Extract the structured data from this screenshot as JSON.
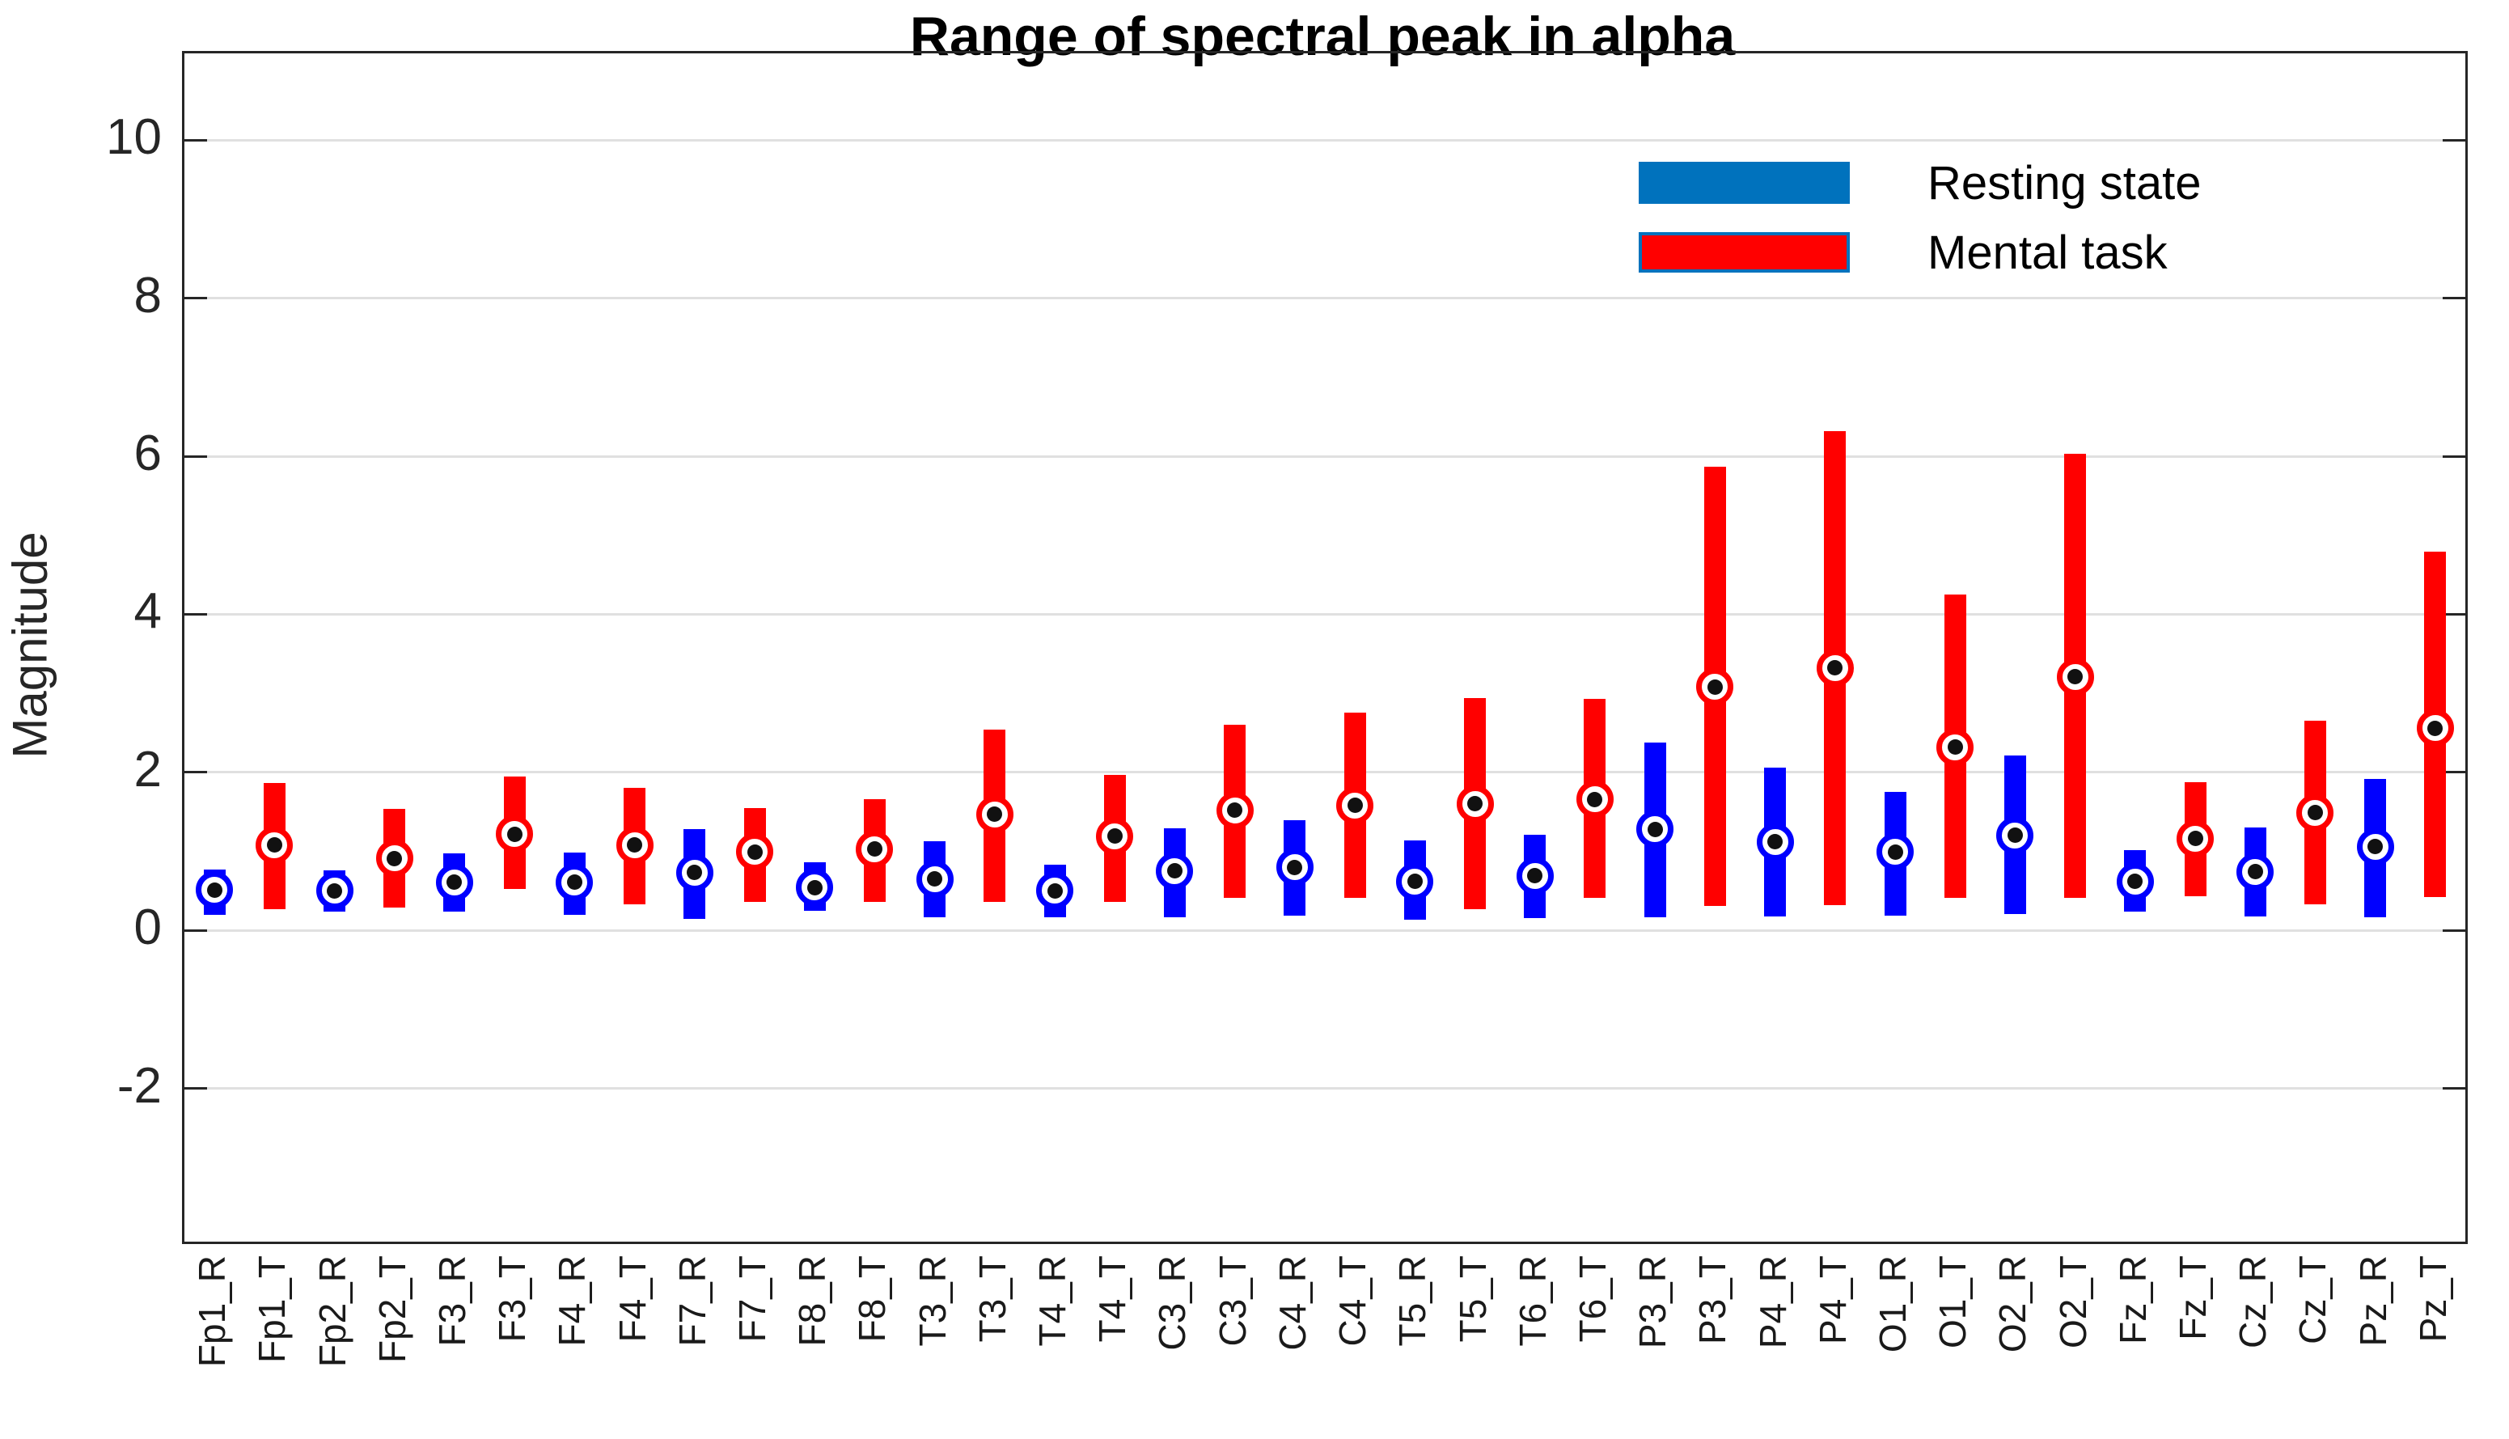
{
  "title": "Range of spectral peak in alpha",
  "ylabel": "Magnitude",
  "legend": [
    {
      "label": "Resting state",
      "color": "#0072BD"
    },
    {
      "label": "Mental task",
      "color": "#FF0000"
    }
  ],
  "colors": {
    "resting_bar": "#0000FF",
    "task_bar": "#FF0000",
    "axis": "#262626",
    "grid": "#E0E0E0",
    "legend_swatch_border": "#0072BD"
  },
  "chart_data": {
    "type": "bar",
    "subtype": "floating-range-bars-with-median-markers",
    "title": "Range of spectral peak in alpha",
    "xlabel": "",
    "ylabel": "Magnitude",
    "ylim": [
      -3.94,
      11.1
    ],
    "yticks": [
      10,
      8,
      6,
      4,
      2,
      0,
      -2
    ],
    "grid": true,
    "legend_position": "upper right inside",
    "series_legend": [
      "Resting state",
      "Mental task"
    ],
    "categories": [
      "Fp1_R",
      "Fp1_T",
      "Fp2_R",
      "Fp2_T",
      "F3_R",
      "F3_T",
      "F4_R",
      "F4_T",
      "F7_R",
      "F7_T",
      "F8_R",
      "F8_T",
      "T3_R",
      "T3_T",
      "T4_R",
      "T4_T",
      "C3_R",
      "C3_T",
      "C4_R",
      "C4_T",
      "T5_R",
      "T5_T",
      "T6_R",
      "T6_T",
      "P3_R",
      "P3_T",
      "P4_R",
      "P4_T",
      "O1_R",
      "O1_T",
      "O2_R",
      "O2_T",
      "Fz_R",
      "Fz_T",
      "Cz_R",
      "Cz_T",
      "Pz_R",
      "Pz_T"
    ],
    "bars": [
      {
        "label": "Fp1_R",
        "series": "resting",
        "low": 0.2,
        "high": 0.77,
        "marker": 0.51
      },
      {
        "label": "Fp1_T",
        "series": "task",
        "low": 0.27,
        "high": 1.87,
        "marker": 1.08
      },
      {
        "label": "Fp2_R",
        "series": "resting",
        "low": 0.24,
        "high": 0.76,
        "marker": 0.5
      },
      {
        "label": "Fp2_T",
        "series": "task",
        "low": 0.29,
        "high": 1.54,
        "marker": 0.91
      },
      {
        "label": "F3_R",
        "series": "resting",
        "low": 0.24,
        "high": 0.97,
        "marker": 0.61
      },
      {
        "label": "F3_T",
        "series": "task",
        "low": 0.52,
        "high": 1.95,
        "marker": 1.22
      },
      {
        "label": "F4_R",
        "series": "resting",
        "low": 0.2,
        "high": 0.98,
        "marker": 0.61
      },
      {
        "label": "F4_T",
        "series": "task",
        "low": 0.33,
        "high": 1.8,
        "marker": 1.08
      },
      {
        "label": "F7_R",
        "series": "resting",
        "low": 0.14,
        "high": 1.28,
        "marker": 0.73
      },
      {
        "label": "F7_T",
        "series": "task",
        "low": 0.36,
        "high": 1.55,
        "marker": 0.99
      },
      {
        "label": "F8_R",
        "series": "resting",
        "low": 0.25,
        "high": 0.86,
        "marker": 0.54
      },
      {
        "label": "F8_T",
        "series": "task",
        "low": 0.36,
        "high": 1.66,
        "marker": 1.03
      },
      {
        "label": "T3_R",
        "series": "resting",
        "low": 0.17,
        "high": 1.13,
        "marker": 0.65
      },
      {
        "label": "T3_T",
        "series": "task",
        "low": 0.36,
        "high": 2.54,
        "marker": 1.47
      },
      {
        "label": "T4_R",
        "series": "resting",
        "low": 0.17,
        "high": 0.83,
        "marker": 0.5
      },
      {
        "label": "T4_T",
        "series": "task",
        "low": 0.36,
        "high": 1.97,
        "marker": 1.19
      },
      {
        "label": "C3_R",
        "series": "resting",
        "low": 0.17,
        "high": 1.29,
        "marker": 0.75
      },
      {
        "label": "C3_T",
        "series": "task",
        "low": 0.41,
        "high": 2.6,
        "marker": 1.52
      },
      {
        "label": "C4_R",
        "series": "resting",
        "low": 0.19,
        "high": 1.39,
        "marker": 0.8
      },
      {
        "label": "C4_T",
        "series": "task",
        "low": 0.41,
        "high": 2.76,
        "marker": 1.58
      },
      {
        "label": "T5_R",
        "series": "resting",
        "low": 0.13,
        "high": 1.14,
        "marker": 0.62
      },
      {
        "label": "T5_T",
        "series": "task",
        "low": 0.27,
        "high": 2.94,
        "marker": 1.6
      },
      {
        "label": "T6_R",
        "series": "resting",
        "low": 0.16,
        "high": 1.21,
        "marker": 0.69
      },
      {
        "label": "T6_T",
        "series": "task",
        "low": 0.41,
        "high": 2.93,
        "marker": 1.66
      },
      {
        "label": "P3_R",
        "series": "resting",
        "low": 0.17,
        "high": 2.38,
        "marker": 1.28
      },
      {
        "label": "P3_T",
        "series": "task",
        "low": 0.31,
        "high": 5.87,
        "marker": 3.08
      },
      {
        "label": "P4_R",
        "series": "resting",
        "low": 0.18,
        "high": 2.06,
        "marker": 1.12
      },
      {
        "label": "P4_T",
        "series": "task",
        "low": 0.32,
        "high": 6.32,
        "marker": 3.32
      },
      {
        "label": "O1_R",
        "series": "resting",
        "low": 0.19,
        "high": 1.75,
        "marker": 0.99
      },
      {
        "label": "O1_T",
        "series": "task",
        "low": 0.41,
        "high": 4.25,
        "marker": 2.32
      },
      {
        "label": "O2_R",
        "series": "resting",
        "low": 0.21,
        "high": 2.21,
        "marker": 1.2
      },
      {
        "label": "O2_T",
        "series": "task",
        "low": 0.41,
        "high": 6.03,
        "marker": 3.21
      },
      {
        "label": "Fz_R",
        "series": "resting",
        "low": 0.24,
        "high": 1.02,
        "marker": 0.62
      },
      {
        "label": "Fz_T",
        "series": "task",
        "low": 0.43,
        "high": 1.88,
        "marker": 1.16
      },
      {
        "label": "Cz_R",
        "series": "resting",
        "low": 0.18,
        "high": 1.3,
        "marker": 0.74
      },
      {
        "label": "Cz_T",
        "series": "task",
        "low": 0.33,
        "high": 2.65,
        "marker": 1.49
      },
      {
        "label": "Pz_R",
        "series": "resting",
        "low": 0.17,
        "high": 1.92,
        "marker": 1.06
      },
      {
        "label": "Pz_T",
        "series": "task",
        "low": 0.42,
        "high": 4.79,
        "marker": 2.56
      }
    ]
  }
}
